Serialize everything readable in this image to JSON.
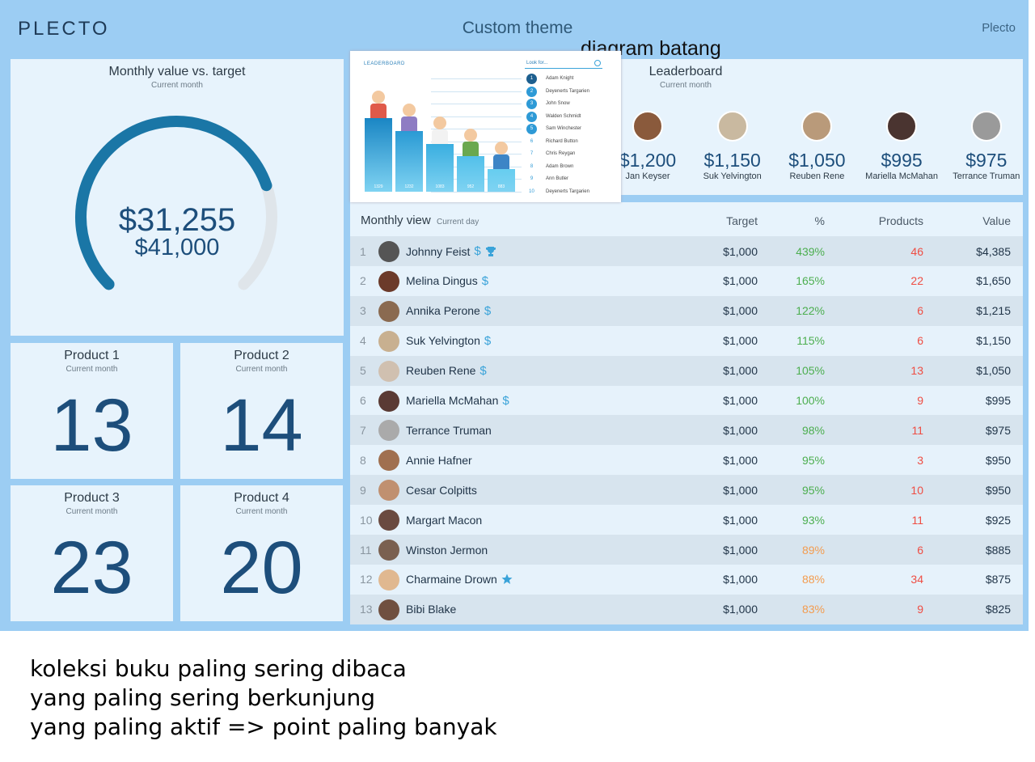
{
  "header": {
    "logo": "PLECTO",
    "title": "Custom theme",
    "account": "Plecto"
  },
  "annotation_overlay": "diagram batang",
  "gauge": {
    "title": "Monthly value vs. target",
    "subtitle": "Current month",
    "value": 31255,
    "value_label": "$31,255",
    "target": 41000,
    "target_label": "$41,000"
  },
  "products": [
    {
      "title": "Product 1",
      "subtitle": "Current month",
      "value": 13
    },
    {
      "title": "Product 2",
      "subtitle": "Current month",
      "value": 14
    },
    {
      "title": "Product 3",
      "subtitle": "Current month",
      "value": 23
    },
    {
      "title": "Product 4",
      "subtitle": "Current month",
      "value": 20
    }
  ],
  "inset": {
    "title": "LEADERBOARD",
    "search": "Look for...",
    "list": [
      {
        "rank": "1",
        "name": "Adam Knight"
      },
      {
        "rank": "2",
        "name": "Deyenerts Targarien"
      },
      {
        "rank": "3",
        "name": "John Snow"
      },
      {
        "rank": "4",
        "name": "Walden Schmidt"
      },
      {
        "rank": "5",
        "name": "Sam Winchester"
      },
      {
        "rank": "6",
        "name": "Richard Button"
      },
      {
        "rank": "7",
        "name": "Chris Reygan"
      },
      {
        "rank": "8",
        "name": "Adam Brown"
      },
      {
        "rank": "9",
        "name": "Ann Butler"
      },
      {
        "rank": "10",
        "name": "Deyenerts Targarien"
      }
    ],
    "bar_labels": [
      "1329",
      "1232",
      "1083",
      "952",
      "883"
    ]
  },
  "leaderboard": {
    "title": "Leaderboard",
    "subtitle": "Current month",
    "entries": [
      {
        "value": "$1,200",
        "name": "Jan Keyser"
      },
      {
        "value": "$1,150",
        "name": "Suk Yelvington"
      },
      {
        "value": "$1,050",
        "name": "Reuben Rene"
      },
      {
        "value": "$995",
        "name": "Mariella McMahan"
      },
      {
        "value": "$975",
        "name": "Terrance Truman"
      }
    ]
  },
  "table": {
    "title": "Monthly view",
    "subtitle": "Current day",
    "columns": [
      "Target",
      "%",
      "Products",
      "Value"
    ],
    "rows": [
      {
        "rank": "1",
        "name": "Johnny Feist",
        "badge": "$",
        "icon": "trophy",
        "target": "$1,000",
        "percent": "439%",
        "products": "46",
        "value": "$4,385",
        "percent_color": "#4cae4f"
      },
      {
        "rank": "2",
        "name": "Melina Dingus",
        "badge": "$",
        "target": "$1,000",
        "percent": "165%",
        "products": "22",
        "value": "$1,650",
        "percent_color": "#4cae4f"
      },
      {
        "rank": "3",
        "name": "Annika Perone",
        "badge": "$",
        "target": "$1,000",
        "percent": "122%",
        "products": "6",
        "value": "$1,215",
        "percent_color": "#4cae4f"
      },
      {
        "rank": "4",
        "name": "Suk Yelvington",
        "badge": "$",
        "target": "$1,000",
        "percent": "115%",
        "products": "6",
        "value": "$1,150",
        "percent_color": "#4cae4f"
      },
      {
        "rank": "5",
        "name": "Reuben Rene",
        "badge": "$",
        "target": "$1,000",
        "percent": "105%",
        "products": "13",
        "value": "$1,050",
        "percent_color": "#4cae4f"
      },
      {
        "rank": "6",
        "name": "Mariella McMahan",
        "badge": "$",
        "target": "$1,000",
        "percent": "100%",
        "products": "9",
        "value": "$995",
        "percent_color": "#4cae4f"
      },
      {
        "rank": "7",
        "name": "Terrance Truman",
        "target": "$1,000",
        "percent": "98%",
        "products": "11",
        "value": "$975",
        "percent_color": "#4cae4f"
      },
      {
        "rank": "8",
        "name": "Annie Hafner",
        "target": "$1,000",
        "percent": "95%",
        "products": "3",
        "value": "$950",
        "percent_color": "#4cae4f"
      },
      {
        "rank": "9",
        "name": "Cesar Colpitts",
        "target": "$1,000",
        "percent": "95%",
        "products": "10",
        "value": "$950",
        "percent_color": "#4cae4f"
      },
      {
        "rank": "10",
        "name": "Margart Macon",
        "target": "$1,000",
        "percent": "93%",
        "products": "11",
        "value": "$925",
        "percent_color": "#4cae4f"
      },
      {
        "rank": "11",
        "name": "Winston Jermon",
        "target": "$1,000",
        "percent": "89%",
        "products": "6",
        "value": "$885",
        "percent_color": "#f39c4f"
      },
      {
        "rank": "12",
        "name": "Charmaine Drown",
        "icon": "star",
        "target": "$1,000",
        "percent": "88%",
        "products": "34",
        "value": "$875",
        "percent_color": "#f39c4f"
      },
      {
        "rank": "13",
        "name": "Bibi Blake",
        "target": "$1,000",
        "percent": "83%",
        "products": "9",
        "value": "$825",
        "percent_color": "#f39c4f"
      }
    ]
  },
  "notes": [
    "koleksi buku paling sering dibaca",
    "yang paling sering berkunjung",
    "yang paling aktif => point paling banyak"
  ]
}
